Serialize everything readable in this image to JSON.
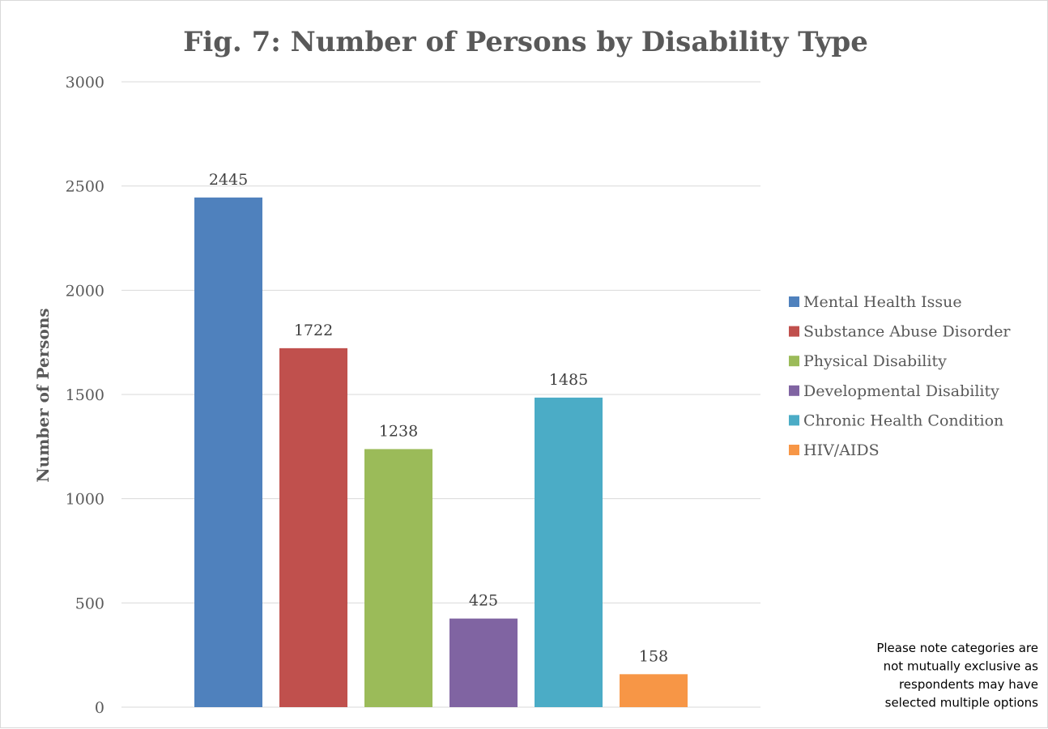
{
  "chart_data": {
    "type": "bar",
    "title": "Fig. 7: Number of Persons by Disability Type",
    "ylabel": "Number of Persons",
    "xlabel": "",
    "ylim": [
      0,
      3000
    ],
    "yticks": [
      0,
      500,
      1000,
      1500,
      2000,
      2500,
      3000
    ],
    "grid": true,
    "legend_position": "right",
    "categories": [
      "Mental Health Issue",
      "Substance Abuse Disorder",
      "Physical Disability",
      "Developmental Disability",
      "Chronic Health Condition",
      "HIV/AIDS"
    ],
    "values": [
      2445,
      1722,
      1238,
      425,
      1485,
      158
    ],
    "colors": [
      "#4f81bd",
      "#c0504d",
      "#9bbb59",
      "#8064a2",
      "#4bacc6",
      "#f79646"
    ],
    "note": [
      "Please note categories are",
      "not mutually exclusive as",
      "respondents may have",
      "selected multiple options"
    ]
  }
}
